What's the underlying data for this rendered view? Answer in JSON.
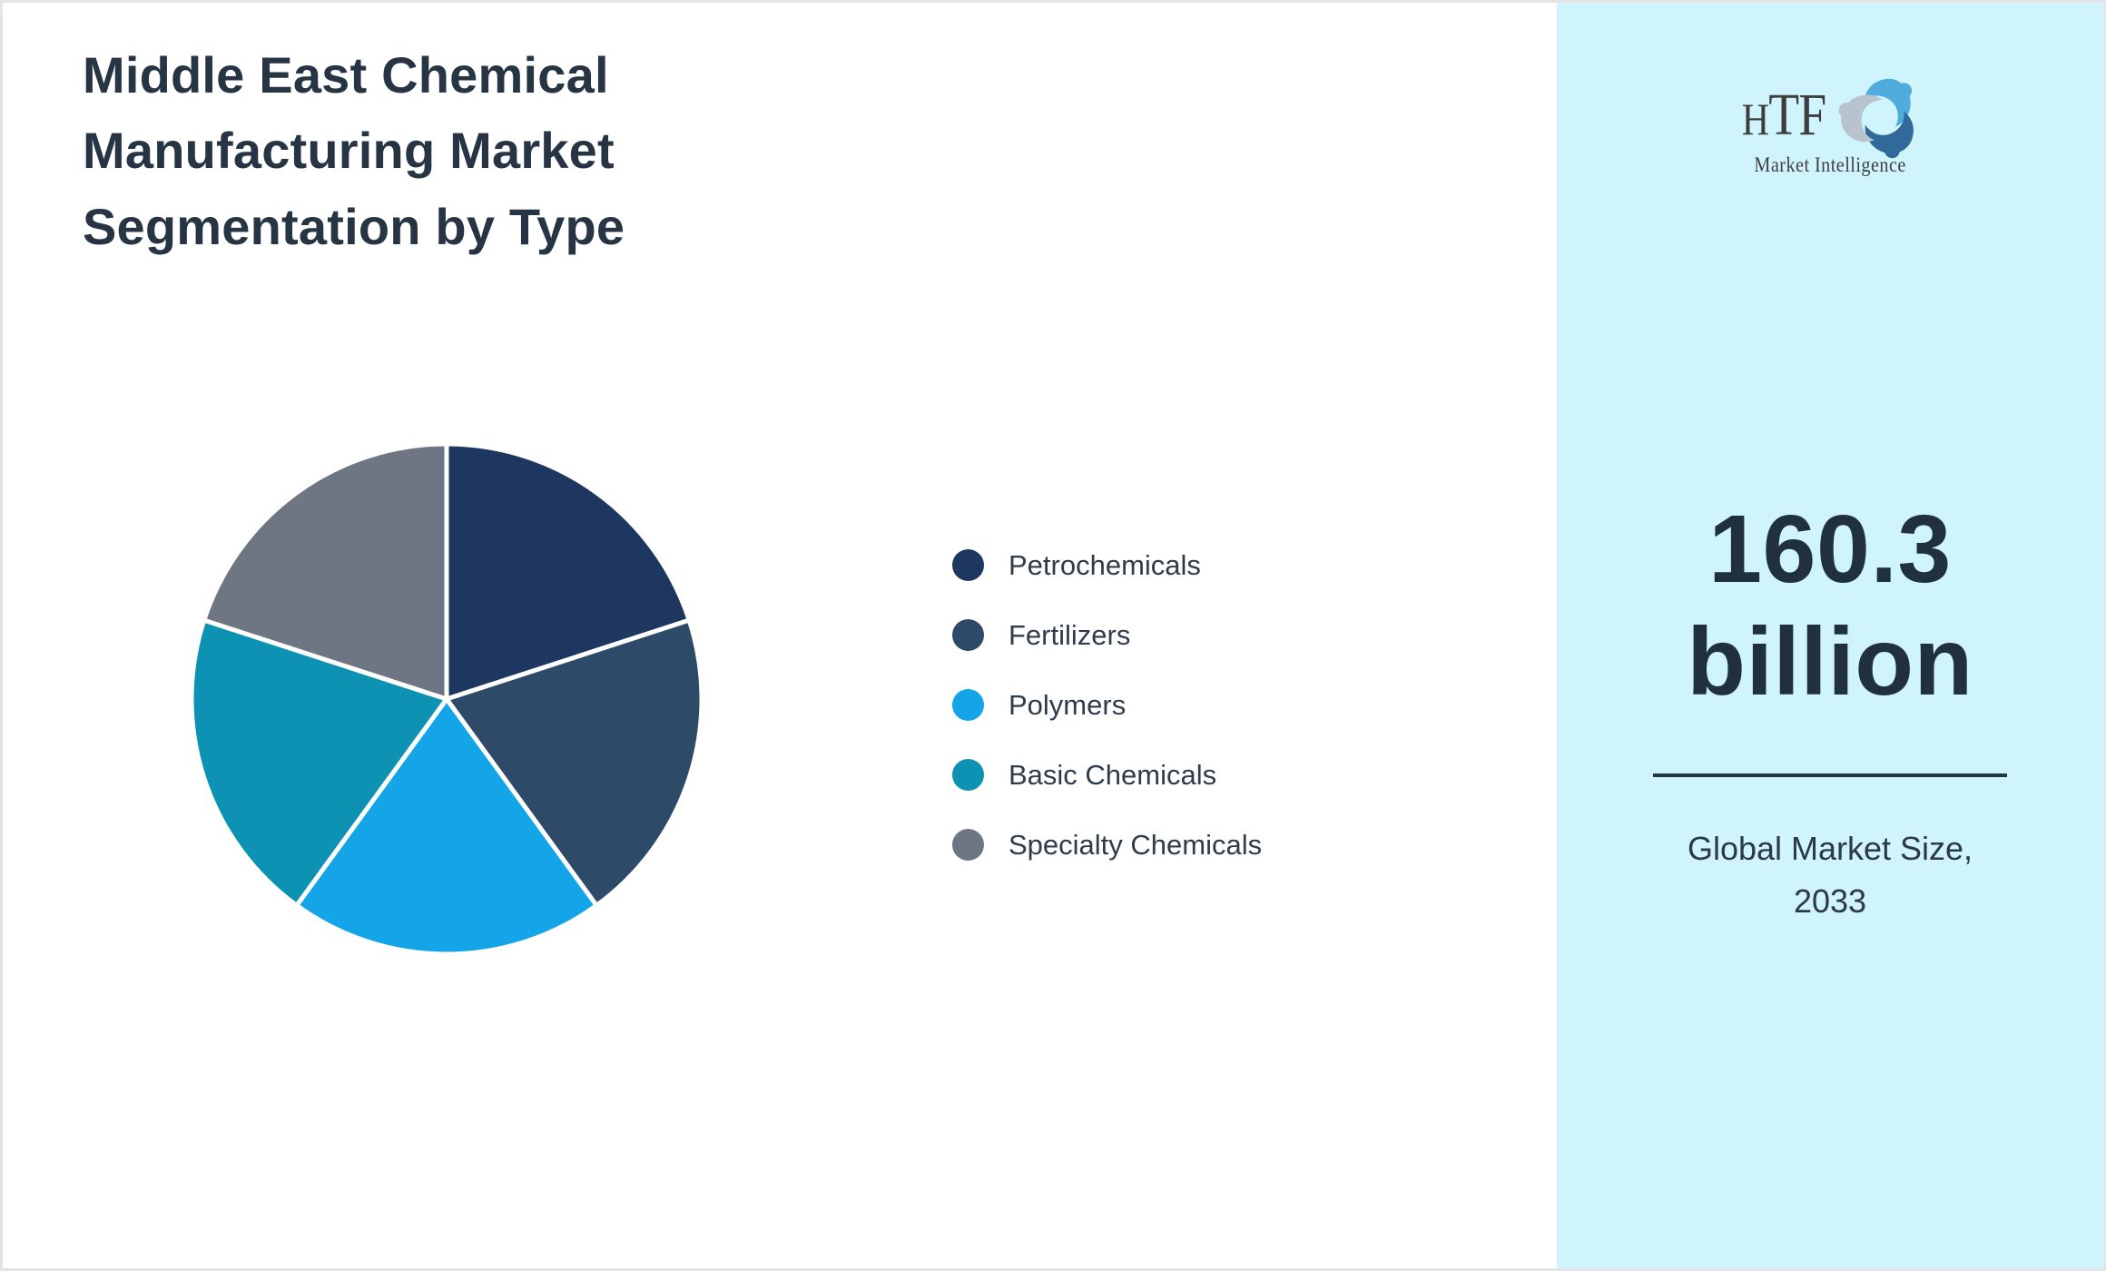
{
  "header": {
    "title_lines": [
      "Middle East Chemical",
      "Manufacturing Market",
      "Segmentation by Type"
    ]
  },
  "chart_data": {
    "type": "pie",
    "title": "Middle East Chemical Manufacturing Market Segmentation by Type",
    "labels": [
      "Petrochemicals",
      "Fertilizers",
      "Polymers",
      "Basic Chemicals",
      "Specialty Chemicals"
    ],
    "values": [
      20,
      20,
      20,
      20,
      20
    ],
    "colors": [
      "#1e3760",
      "#2d4a68",
      "#14a4e8",
      "#0d92b4",
      "#6e7583"
    ],
    "start_angle_deg": 0,
    "direction": "clockwise",
    "legend_position": "right",
    "slice_border_color": "#ffffff",
    "data_labels_shown": false
  },
  "legend": {
    "items": [
      {
        "label": "Petrochemicals",
        "color": "#1e3760"
      },
      {
        "label": "Fertilizers",
        "color": "#2d4a68"
      },
      {
        "label": "Polymers",
        "color": "#14a4e8"
      },
      {
        "label": "Basic Chemicals",
        "color": "#0d92b4"
      },
      {
        "label": "Specialty Chemicals",
        "color": "#6e7583"
      }
    ]
  },
  "sidebar": {
    "background_color": "#cff4fb",
    "logo": {
      "wordmark": "HTF",
      "subtitle": "Market Intelligence",
      "swirl_colors": [
        "#4facdd",
        "#316a9a",
        "#b7c3cd"
      ]
    },
    "market_size": {
      "value_line1": "160.3",
      "value_line2": "billion",
      "caption_line1": "Global Market Size,",
      "caption_line2": "2033"
    }
  }
}
